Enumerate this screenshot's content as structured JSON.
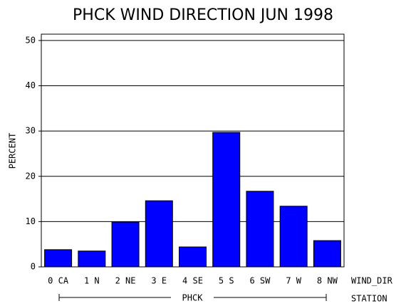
{
  "chart_data": {
    "type": "bar",
    "title": "PHCK WIND DIRECTION JUN 1998",
    "y_label": "PERCENT",
    "x_label": "WIND_DIR",
    "group_label": "STATION",
    "group": "PHCK",
    "categories": [
      "0 CA",
      "1 N",
      "2 NE",
      "3 E",
      "4 SE",
      "5 S",
      "6 SW",
      "7 W",
      "8 NW"
    ],
    "values": [
      3.8,
      3.5,
      9.9,
      14.6,
      4.4,
      29.7,
      16.7,
      13.4,
      5.8
    ],
    "color": "#0000ff",
    "ylim": [
      0,
      51.4
    ],
    "yticks": [
      0,
      10,
      20,
      30,
      40,
      50
    ],
    "grid": true
  }
}
